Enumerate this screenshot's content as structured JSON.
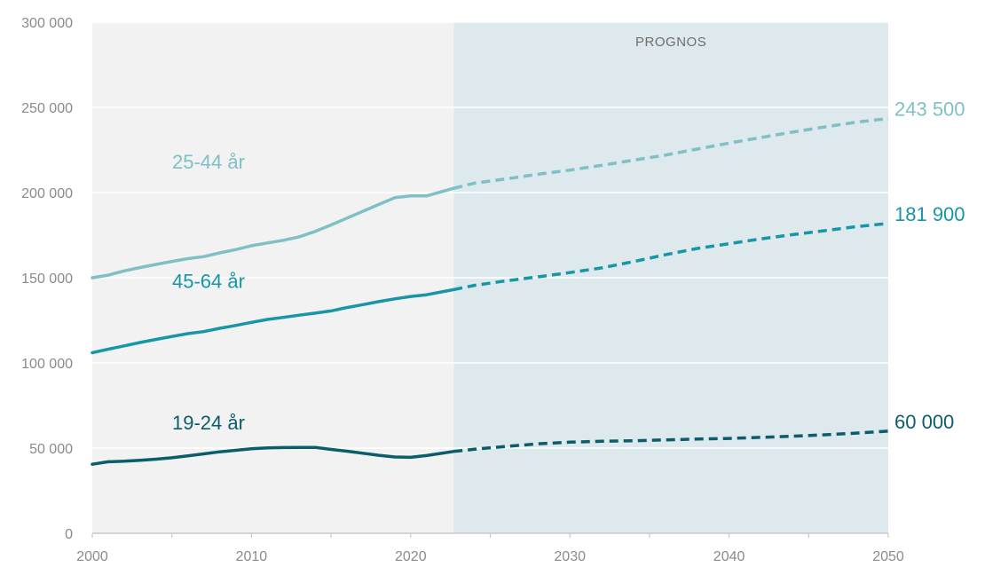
{
  "chart_data": {
    "type": "line",
    "title": "",
    "xlabel": "",
    "ylabel": "",
    "xlim": [
      2000,
      2050
    ],
    "ylim": [
      0,
      300000
    ],
    "x_ticks": [
      "2000",
      "2010",
      "2020",
      "2030",
      "2040",
      "2050"
    ],
    "y_ticks": [
      "0",
      "50 000",
      "100 000",
      "150 000",
      "200 000",
      "250 000",
      "300 000"
    ],
    "forecast_start": 2022.7,
    "forecast_label": "PROGNOS",
    "grid": "horizontal",
    "colors": {
      "history_background": "#f2f2f2",
      "forecast_background": "#dde9ec",
      "gridline": "#ffffff",
      "axis": "#c8c8c8"
    },
    "series": [
      {
        "name": "25-44 år",
        "color": "#7ec0c6",
        "end_label": "243 500",
        "historical": {
          "x": [
            2000,
            2001,
            2002,
            2003,
            2004,
            2005,
            2006,
            2007,
            2008,
            2009,
            2010,
            2011,
            2012,
            2013,
            2014,
            2015,
            2016,
            2017,
            2018,
            2019,
            2020,
            2021,
            2022.7
          ],
          "y": [
            150000,
            151500,
            154000,
            156000,
            157800,
            159600,
            161200,
            162400,
            164600,
            166500,
            168800,
            170400,
            172000,
            174000,
            177200,
            181000,
            185000,
            189000,
            193000,
            197000,
            198000,
            198000,
            202500
          ]
        },
        "forecast": {
          "x": [
            2022.7,
            2024,
            2026,
            2028,
            2030,
            2032,
            2034,
            2036,
            2038,
            2040,
            2042,
            2044,
            2046,
            2048,
            2050
          ],
          "y": [
            202500,
            205500,
            208000,
            210800,
            213200,
            216000,
            219000,
            222000,
            225500,
            229000,
            232300,
            235500,
            238500,
            241300,
            243500
          ]
        }
      },
      {
        "name": "45-64 år",
        "color": "#1796a5",
        "end_label": "181 900",
        "historical": {
          "x": [
            2000,
            2001,
            2002,
            2003,
            2004,
            2005,
            2006,
            2007,
            2008,
            2009,
            2010,
            2011,
            2012,
            2013,
            2014,
            2015,
            2016,
            2017,
            2018,
            2019,
            2020,
            2021,
            2022.7
          ],
          "y": [
            106000,
            108000,
            110000,
            112000,
            113800,
            115500,
            117200,
            118400,
            120300,
            122000,
            123800,
            125500,
            126700,
            128000,
            129200,
            130500,
            132500,
            134200,
            136000,
            137600,
            139000,
            140000,
            143000
          ]
        },
        "forecast": {
          "x": [
            2022.7,
            2024,
            2026,
            2028,
            2030,
            2032,
            2034,
            2036,
            2038,
            2040,
            2042,
            2044,
            2046,
            2048,
            2050
          ],
          "y": [
            143000,
            145500,
            148200,
            150500,
            153000,
            155800,
            159500,
            163500,
            167200,
            170000,
            172800,
            175300,
            177600,
            180000,
            181900
          ]
        }
      },
      {
        "name": "19-24 år",
        "color": "#0b5d6b",
        "end_label": "60 000",
        "historical": {
          "x": [
            2000,
            2001,
            2002,
            2003,
            2004,
            2005,
            2006,
            2007,
            2008,
            2009,
            2010,
            2011,
            2012,
            2013,
            2014,
            2015,
            2016,
            2017,
            2018,
            2019,
            2020,
            2021,
            2022.7
          ],
          "y": [
            40500,
            42000,
            42300,
            42800,
            43500,
            44300,
            45400,
            46600,
            47800,
            48700,
            49600,
            50100,
            50300,
            50400,
            50400,
            49200,
            48200,
            47000,
            45800,
            44800,
            44600,
            45600,
            48000
          ]
        },
        "forecast": {
          "x": [
            2022.7,
            2024,
            2026,
            2028,
            2030,
            2032,
            2034,
            2036,
            2038,
            2040,
            2042,
            2044,
            2046,
            2048,
            2050
          ],
          "y": [
            48000,
            49300,
            51000,
            52500,
            53500,
            54000,
            54300,
            54800,
            55300,
            55700,
            56300,
            57000,
            57800,
            58800,
            60000
          ]
        }
      }
    ]
  }
}
